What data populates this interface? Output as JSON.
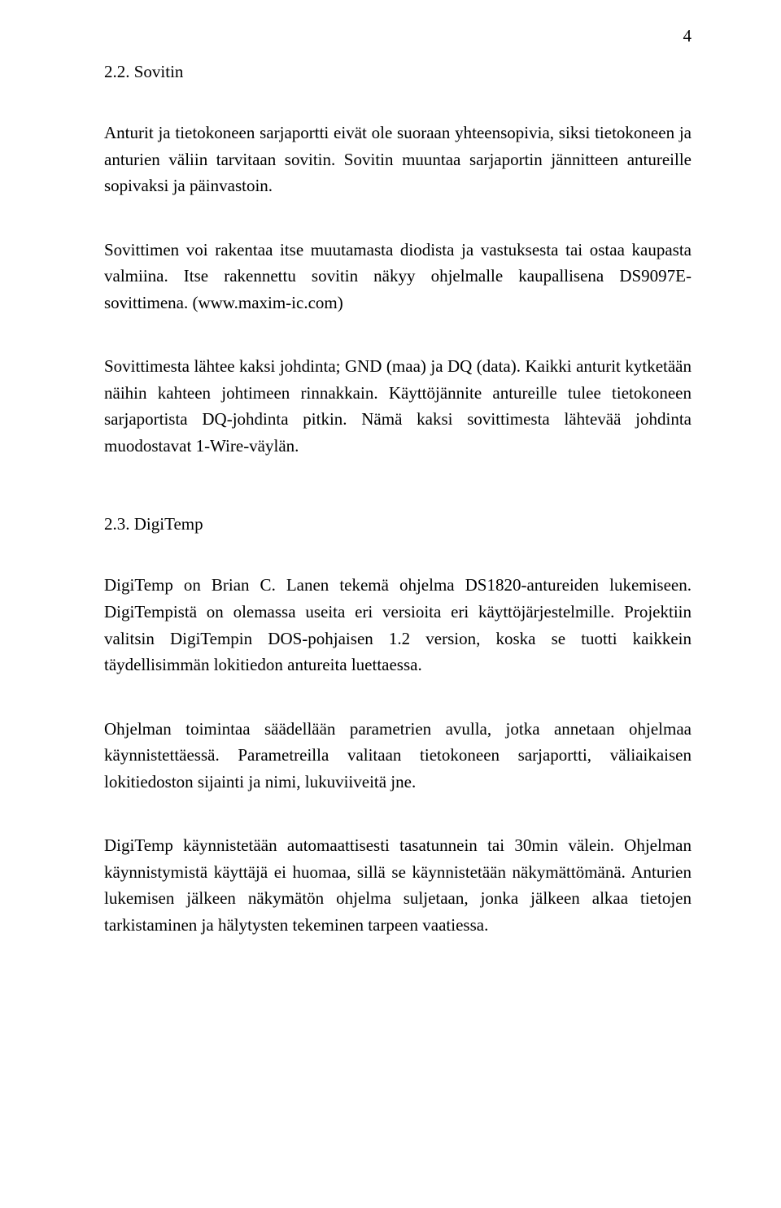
{
  "page": {
    "number": "4",
    "background_color": "#ffffff",
    "text_color": "#000000",
    "font_family": "Times New Roman",
    "body_fontsize_pt": 16,
    "line_height": 1.55
  },
  "sections": {
    "s22": {
      "heading": "2.2. Sovitin",
      "p1": "Anturit ja tietokoneen sarjaportti eivät ole suoraan yhteensopivia, siksi tietokoneen ja anturien väliin tarvitaan sovitin. Sovitin muuntaa sarjaportin jännitteen antureille sopivaksi ja päinvastoin.",
      "p2": "Sovittimen voi rakentaa itse muutamasta diodista ja vastuksesta tai ostaa kaupasta valmiina. Itse rakennettu sovitin näkyy ohjelmalle kaupallisena DS9097E-sovittimena. (www.maxim-ic.com)",
      "p3": "Sovittimesta lähtee kaksi johdinta; GND (maa) ja DQ (data). Kaikki anturit kytketään näihin kahteen johtimeen rinnakkain. Käyttöjännite antureille tulee tietokoneen sarjaportista DQ-johdinta pitkin. Nämä kaksi sovittimesta lähtevää johdinta muodostavat 1-Wire-väylän."
    },
    "s23": {
      "heading": "2.3. DigiTemp",
      "p1": "DigiTemp on Brian C. Lanen tekemä ohjelma DS1820-antureiden lukemiseen. DigiTempistä on olemassa useita eri versioita eri käyttöjärjestelmille. Projektiin valitsin DigiTempin DOS-pohjaisen 1.2 version, koska se tuotti kaikkein täydellisimmän lokitiedon antureita luettaessa.",
      "p2": "Ohjelman toimintaa säädellään parametrien avulla, jotka annetaan ohjelmaa käynnistettäessä. Parametreilla valitaan tietokoneen sarjaportti, väliaikaisen lokitiedoston sijainti ja nimi, lukuviiveitä jne.",
      "p3": "DigiTemp käynnistetään automaattisesti tasatunnein tai 30min välein. Ohjelman käynnistymistä käyttäjä ei huomaa, sillä se käynnistetään näkymättömänä. Anturien lukemisen jälkeen näkymätön ohjelma suljetaan, jonka jälkeen alkaa tietojen tarkistaminen ja hälytysten tekeminen tarpeen vaatiessa."
    }
  }
}
